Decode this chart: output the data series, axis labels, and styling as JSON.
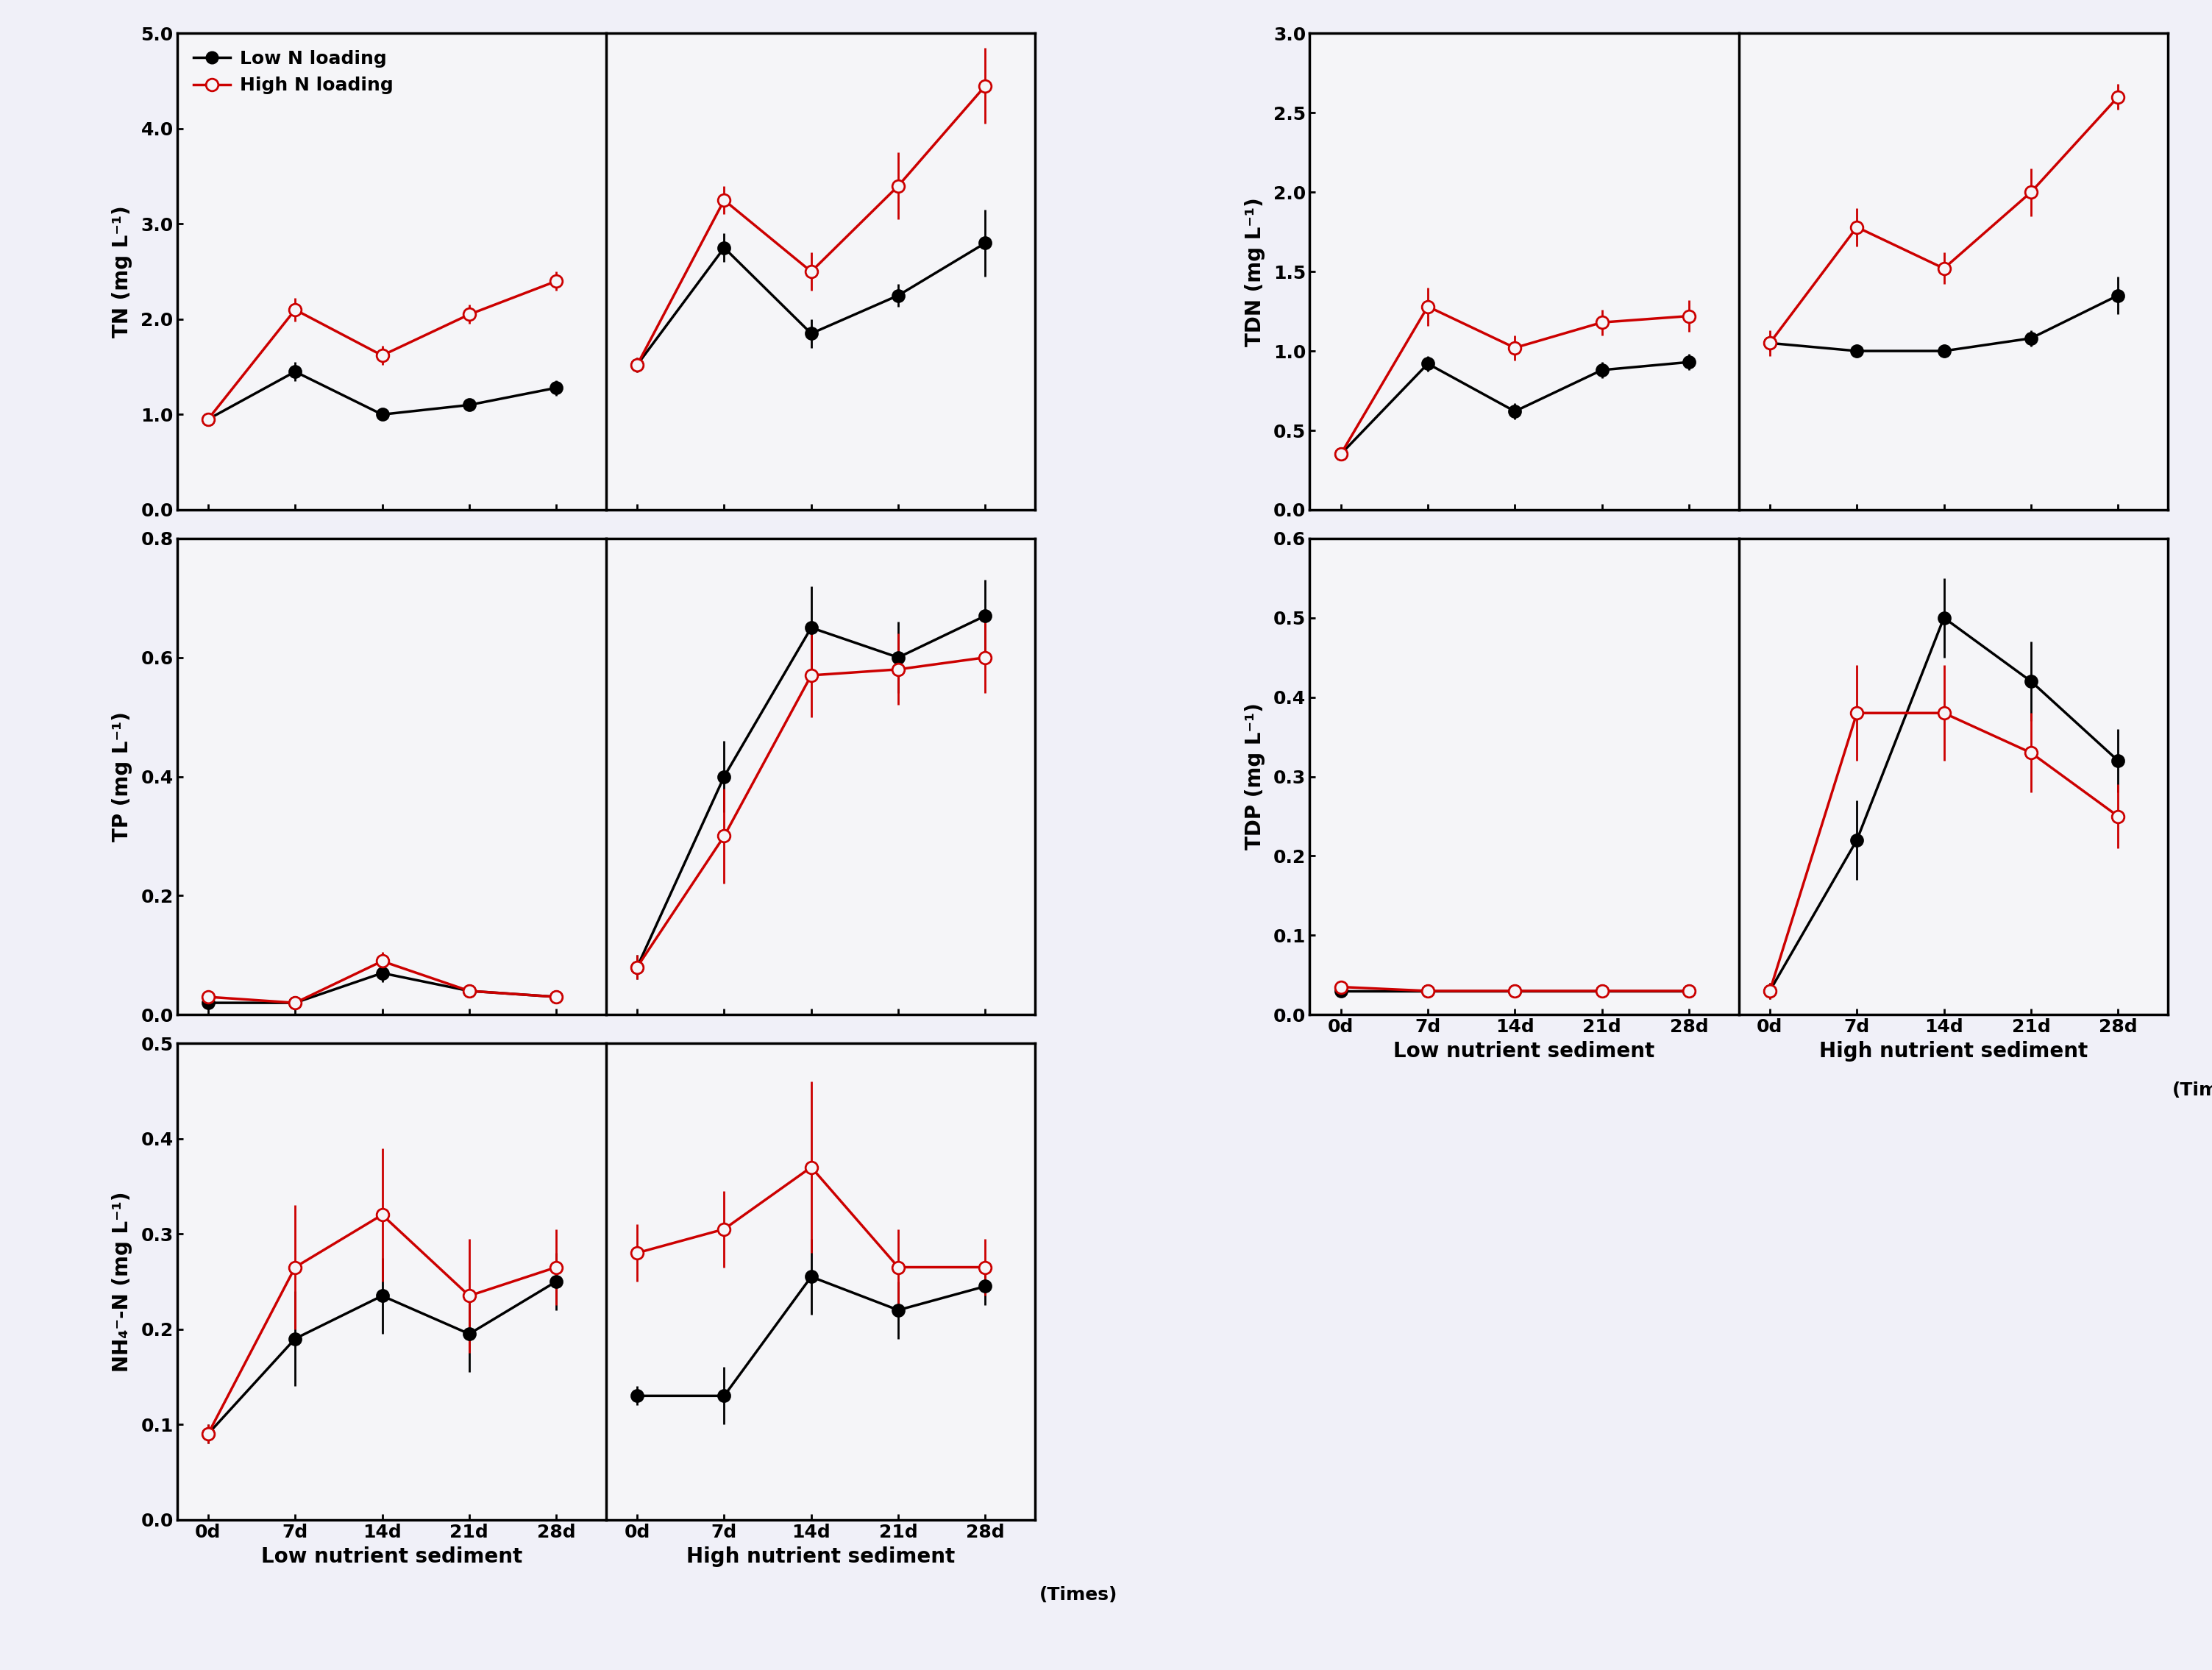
{
  "x": [
    0,
    7,
    14,
    21,
    28
  ],
  "TN": {
    "low_nutrient": {
      "black": {
        "y": [
          0.95,
          1.45,
          1.0,
          1.1,
          1.28
        ],
        "err": [
          0.05,
          0.1,
          0.05,
          0.05,
          0.08
        ]
      },
      "red": {
        "y": [
          0.95,
          2.1,
          1.62,
          2.05,
          2.4
        ],
        "err": [
          0.05,
          0.12,
          0.1,
          0.1,
          0.1
        ]
      }
    },
    "high_nutrient": {
      "black": {
        "y": [
          1.52,
          2.75,
          1.85,
          2.25,
          2.8
        ],
        "err": [
          0.08,
          0.15,
          0.15,
          0.12,
          0.35
        ]
      },
      "red": {
        "y": [
          1.52,
          3.25,
          2.5,
          3.4,
          4.45
        ],
        "err": [
          0.08,
          0.15,
          0.2,
          0.35,
          0.4
        ]
      }
    },
    "ylim": [
      0,
      5.0
    ],
    "yticks": [
      0.0,
      1.0,
      2.0,
      3.0,
      4.0,
      5.0
    ],
    "ylabel": "TN (mg L⁻¹)"
  },
  "TDN": {
    "low_nutrient": {
      "black": {
        "y": [
          0.35,
          0.92,
          0.62,
          0.88,
          0.93
        ],
        "err": [
          0.04,
          0.05,
          0.05,
          0.05,
          0.05
        ]
      },
      "red": {
        "y": [
          0.35,
          1.28,
          1.02,
          1.18,
          1.22
        ],
        "err": [
          0.04,
          0.12,
          0.08,
          0.08,
          0.1
        ]
      }
    },
    "high_nutrient": {
      "black": {
        "y": [
          1.05,
          1.0,
          1.0,
          1.08,
          1.35
        ],
        "err": [
          0.05,
          0.04,
          0.04,
          0.05,
          0.12
        ]
      },
      "red": {
        "y": [
          1.05,
          1.78,
          1.52,
          2.0,
          2.6
        ],
        "err": [
          0.08,
          0.12,
          0.1,
          0.15,
          0.08
        ]
      }
    },
    "ylim": [
      0,
      3.0
    ],
    "yticks": [
      0.0,
      0.5,
      1.0,
      1.5,
      2.0,
      2.5,
      3.0
    ],
    "ylabel": "TDN (mg L⁻¹)"
  },
  "TP": {
    "low_nutrient": {
      "black": {
        "y": [
          0.02,
          0.02,
          0.07,
          0.04,
          0.03
        ],
        "err": [
          0.005,
          0.005,
          0.015,
          0.01,
          0.008
        ]
      },
      "red": {
        "y": [
          0.03,
          0.02,
          0.09,
          0.04,
          0.03
        ],
        "err": [
          0.008,
          0.005,
          0.015,
          0.01,
          0.006
        ]
      }
    },
    "high_nutrient": {
      "black": {
        "y": [
          0.08,
          0.4,
          0.65,
          0.6,
          0.67
        ],
        "err": [
          0.02,
          0.06,
          0.07,
          0.06,
          0.06
        ]
      },
      "red": {
        "y": [
          0.08,
          0.3,
          0.57,
          0.58,
          0.6
        ],
        "err": [
          0.02,
          0.08,
          0.07,
          0.06,
          0.06
        ]
      }
    },
    "ylim": [
      0,
      0.8
    ],
    "yticks": [
      0.0,
      0.2,
      0.4,
      0.6,
      0.8
    ],
    "ylabel": "TP (mg L⁻¹)"
  },
  "TDP": {
    "low_nutrient": {
      "black": {
        "y": [
          0.03,
          0.03,
          0.03,
          0.03,
          0.03
        ],
        "err": [
          0.005,
          0.005,
          0.005,
          0.005,
          0.005
        ]
      },
      "red": {
        "y": [
          0.035,
          0.03,
          0.03,
          0.03,
          0.03
        ],
        "err": [
          0.006,
          0.005,
          0.005,
          0.005,
          0.005
        ]
      }
    },
    "high_nutrient": {
      "black": {
        "y": [
          0.03,
          0.22,
          0.5,
          0.42,
          0.32
        ],
        "err": [
          0.01,
          0.05,
          0.05,
          0.05,
          0.04
        ]
      },
      "red": {
        "y": [
          0.03,
          0.38,
          0.38,
          0.33,
          0.25
        ],
        "err": [
          0.01,
          0.06,
          0.06,
          0.05,
          0.04
        ]
      }
    },
    "ylim": [
      0,
      0.6
    ],
    "yticks": [
      0.0,
      0.1,
      0.2,
      0.3,
      0.4,
      0.5,
      0.6
    ],
    "ylabel": "TDP (mg L⁻¹)"
  },
  "NH4N": {
    "low_nutrient": {
      "black": {
        "y": [
          0.09,
          0.19,
          0.235,
          0.195,
          0.25
        ],
        "err": [
          0.01,
          0.05,
          0.04,
          0.04,
          0.03
        ]
      },
      "red": {
        "y": [
          0.09,
          0.265,
          0.32,
          0.235,
          0.265
        ],
        "err": [
          0.01,
          0.065,
          0.07,
          0.06,
          0.04
        ]
      }
    },
    "high_nutrient": {
      "black": {
        "y": [
          0.13,
          0.13,
          0.255,
          0.22,
          0.245
        ],
        "err": [
          0.01,
          0.03,
          0.04,
          0.03,
          0.02
        ]
      },
      "red": {
        "y": [
          0.28,
          0.305,
          0.37,
          0.265,
          0.265
        ],
        "err": [
          0.03,
          0.04,
          0.09,
          0.04,
          0.03
        ]
      }
    },
    "ylim": [
      0,
      0.5
    ],
    "yticks": [
      0.0,
      0.1,
      0.2,
      0.3,
      0.4,
      0.5
    ],
    "ylabel": "NH₄⁻-N (mg L⁻¹)"
  },
  "xlabel_low": "Low nutrient sediment",
  "xlabel_high": "High nutrient sediment",
  "xtick_labels": [
    "0d",
    "7d",
    "14d",
    "21d",
    "28d"
  ],
  "times_label": "(Times)",
  "legend_low": "Low N loading",
  "legend_high": "High N loading",
  "black_color": "#000000",
  "red_color": "#cc0000",
  "bg_color": "#f0f0f8",
  "plot_bg": "#f5f5f8",
  "border_color": "#008000",
  "fontsize_label": 20,
  "fontsize_tick": 18,
  "fontsize_legend": 18,
  "fontsize_times": 18,
  "markersize": 12,
  "linewidth": 2.5,
  "elinewidth": 2.0
}
